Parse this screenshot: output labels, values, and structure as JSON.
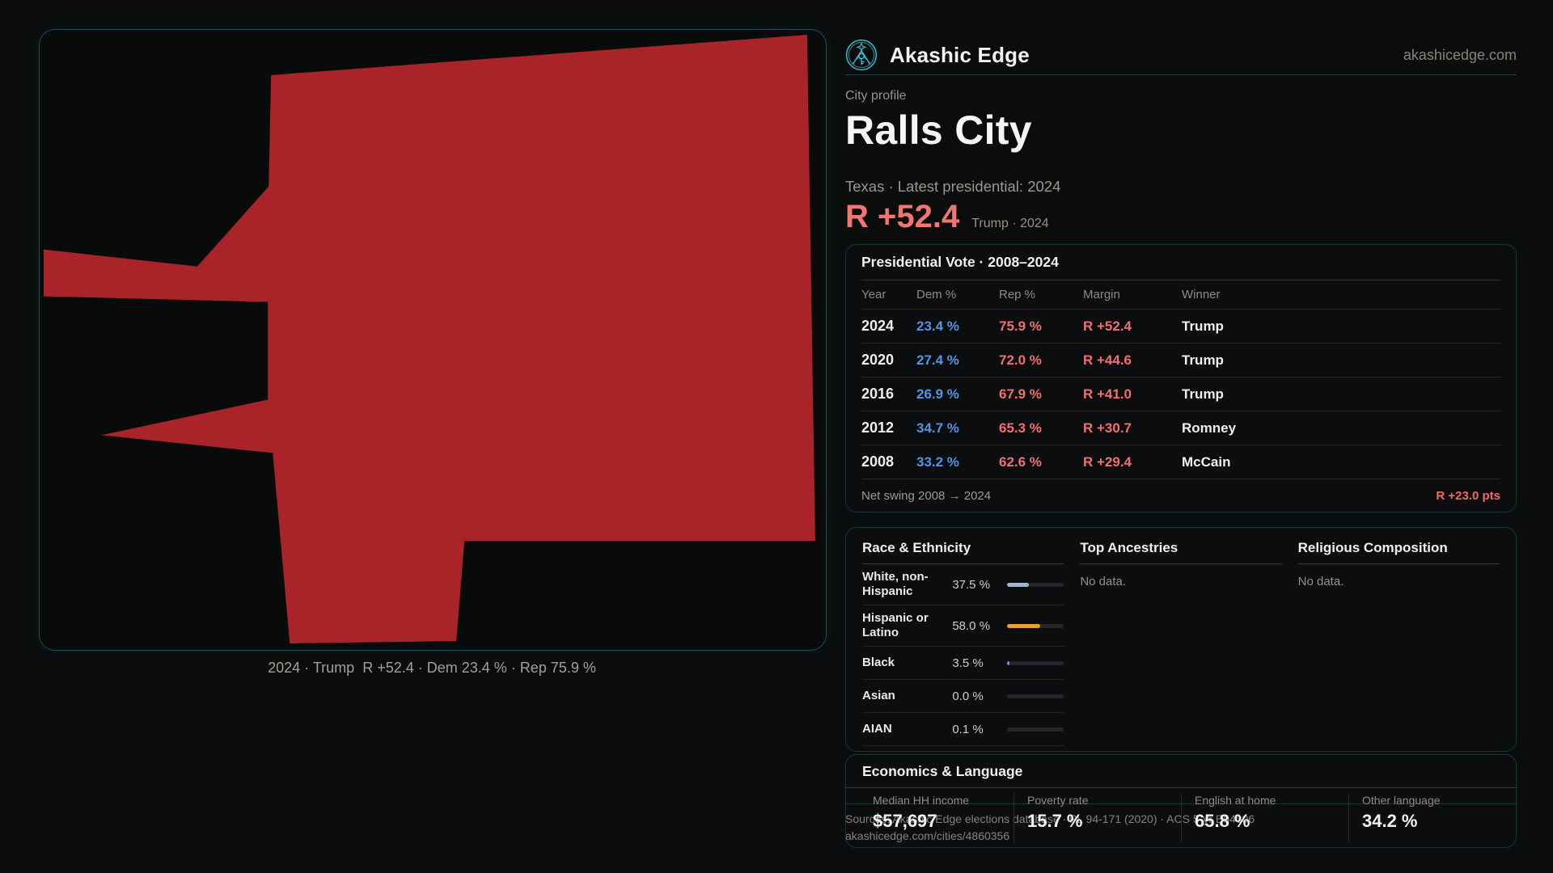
{
  "brand": {
    "name": "Akashic Edge",
    "domain": "akashicedge.com"
  },
  "profile": {
    "eyebrow": "City profile",
    "title": "Ralls City",
    "subtitle": "Texas · Latest presidential: 2024",
    "margin_big": "R +52.4",
    "margin_note": "Trump · 2024"
  },
  "map": {
    "caption": "2024 · Trump  R +52.4 · Dem 23.4 % · Rep 75.9 %",
    "shape_fill": "#a82428"
  },
  "colors": {
    "dem": "#4d96e8",
    "rep": "#f0706e",
    "accent_teal": "#3fc4da",
    "margin_red": "#f3756f"
  },
  "presidential": {
    "title": "Presidential Vote · 2008–2024",
    "columns": [
      "Year",
      "Dem %",
      "Rep %",
      "Margin",
      "Winner"
    ],
    "rows": [
      {
        "year": "2024",
        "dem": "23.4 %",
        "rep": "75.9 %",
        "margin": "R +52.4",
        "winner": "Trump"
      },
      {
        "year": "2020",
        "dem": "27.4 %",
        "rep": "72.0 %",
        "margin": "R +44.6",
        "winner": "Trump"
      },
      {
        "year": "2016",
        "dem": "26.9 %",
        "rep": "67.9 %",
        "margin": "R +41.0",
        "winner": "Trump"
      },
      {
        "year": "2012",
        "dem": "34.7 %",
        "rep": "65.3 %",
        "margin": "R +30.7",
        "winner": "Romney"
      },
      {
        "year": "2008",
        "dem": "33.2 %",
        "rep": "62.6 %",
        "margin": "R +29.4",
        "winner": "McCain"
      }
    ],
    "net_swing_label": "Net swing 2008 → 2024",
    "net_swing_value": "R +23.0 pts"
  },
  "race": {
    "title": "Race & Ethnicity",
    "rows": [
      {
        "label": "White, non-Hispanic",
        "value": "37.5 %",
        "pct": 37.5,
        "color": "#9fb6cf"
      },
      {
        "label": "Hispanic or Latino",
        "value": "58.0 %",
        "pct": 58.0,
        "color": "#e8a22e"
      },
      {
        "label": "Black",
        "value": "3.5 %",
        "pct": 3.5,
        "color": "#8f7df0"
      },
      {
        "label": "Asian",
        "value": "0.0 %",
        "pct": 0.0,
        "color": "#8f7df0"
      },
      {
        "label": "AIAN",
        "value": "0.1 %",
        "pct": 0.1,
        "color": "#9fb6cf"
      }
    ]
  },
  "ancestries": {
    "title": "Top Ancestries",
    "empty": "No data."
  },
  "religion": {
    "title": "Religious Composition",
    "empty": "No data."
  },
  "economics": {
    "title": "Economics & Language",
    "stats": [
      {
        "label": "Median HH income",
        "value": "$57,697"
      },
      {
        "label": "Poverty rate",
        "value": "15.7 %"
      },
      {
        "label": "English at home",
        "value": "65.8 %"
      },
      {
        "label": "Other language",
        "value": "34.2 %"
      }
    ]
  },
  "footer": {
    "line1": "Sources: Akashic Edge elections database · PL 94-171 (2020) · ACS 5-yr B04006",
    "line2": "akashicedge.com/cities/4860356"
  }
}
